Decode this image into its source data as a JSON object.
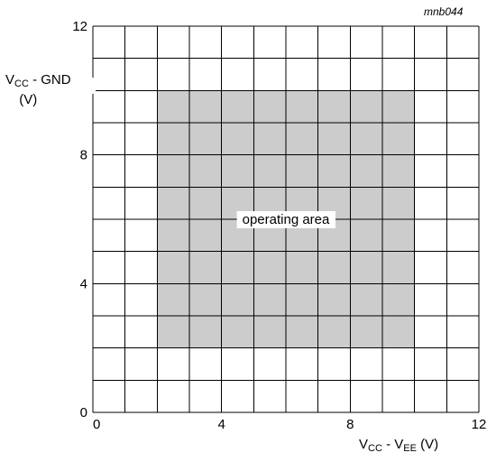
{
  "chart_data": {
    "type": "area",
    "figure_code": "mnb044",
    "xlabel": {
      "main_a": "V",
      "sub_a": "CC",
      "sep": " - ",
      "main_b": "V",
      "sub_b": "EE",
      "unit": " (V)"
    },
    "ylabel": {
      "main_a": "V",
      "sub_a": "CC",
      "sep": " - ",
      "main_b": "GND",
      "unit": "(V)"
    },
    "xlim": [
      0,
      12
    ],
    "ylim": [
      0,
      12
    ],
    "x_ticks": [
      0,
      4,
      8,
      12
    ],
    "y_ticks": [
      0,
      4,
      8,
      12
    ],
    "grid": true,
    "grid_step": 1,
    "region": {
      "label": "operating area",
      "x_range": [
        2,
        10
      ],
      "y_range": [
        2,
        10
      ],
      "fill": "#cccccc"
    },
    "colors": {
      "grid": "#000000",
      "region_fill": "#cccccc",
      "background": "#ffffff"
    }
  }
}
